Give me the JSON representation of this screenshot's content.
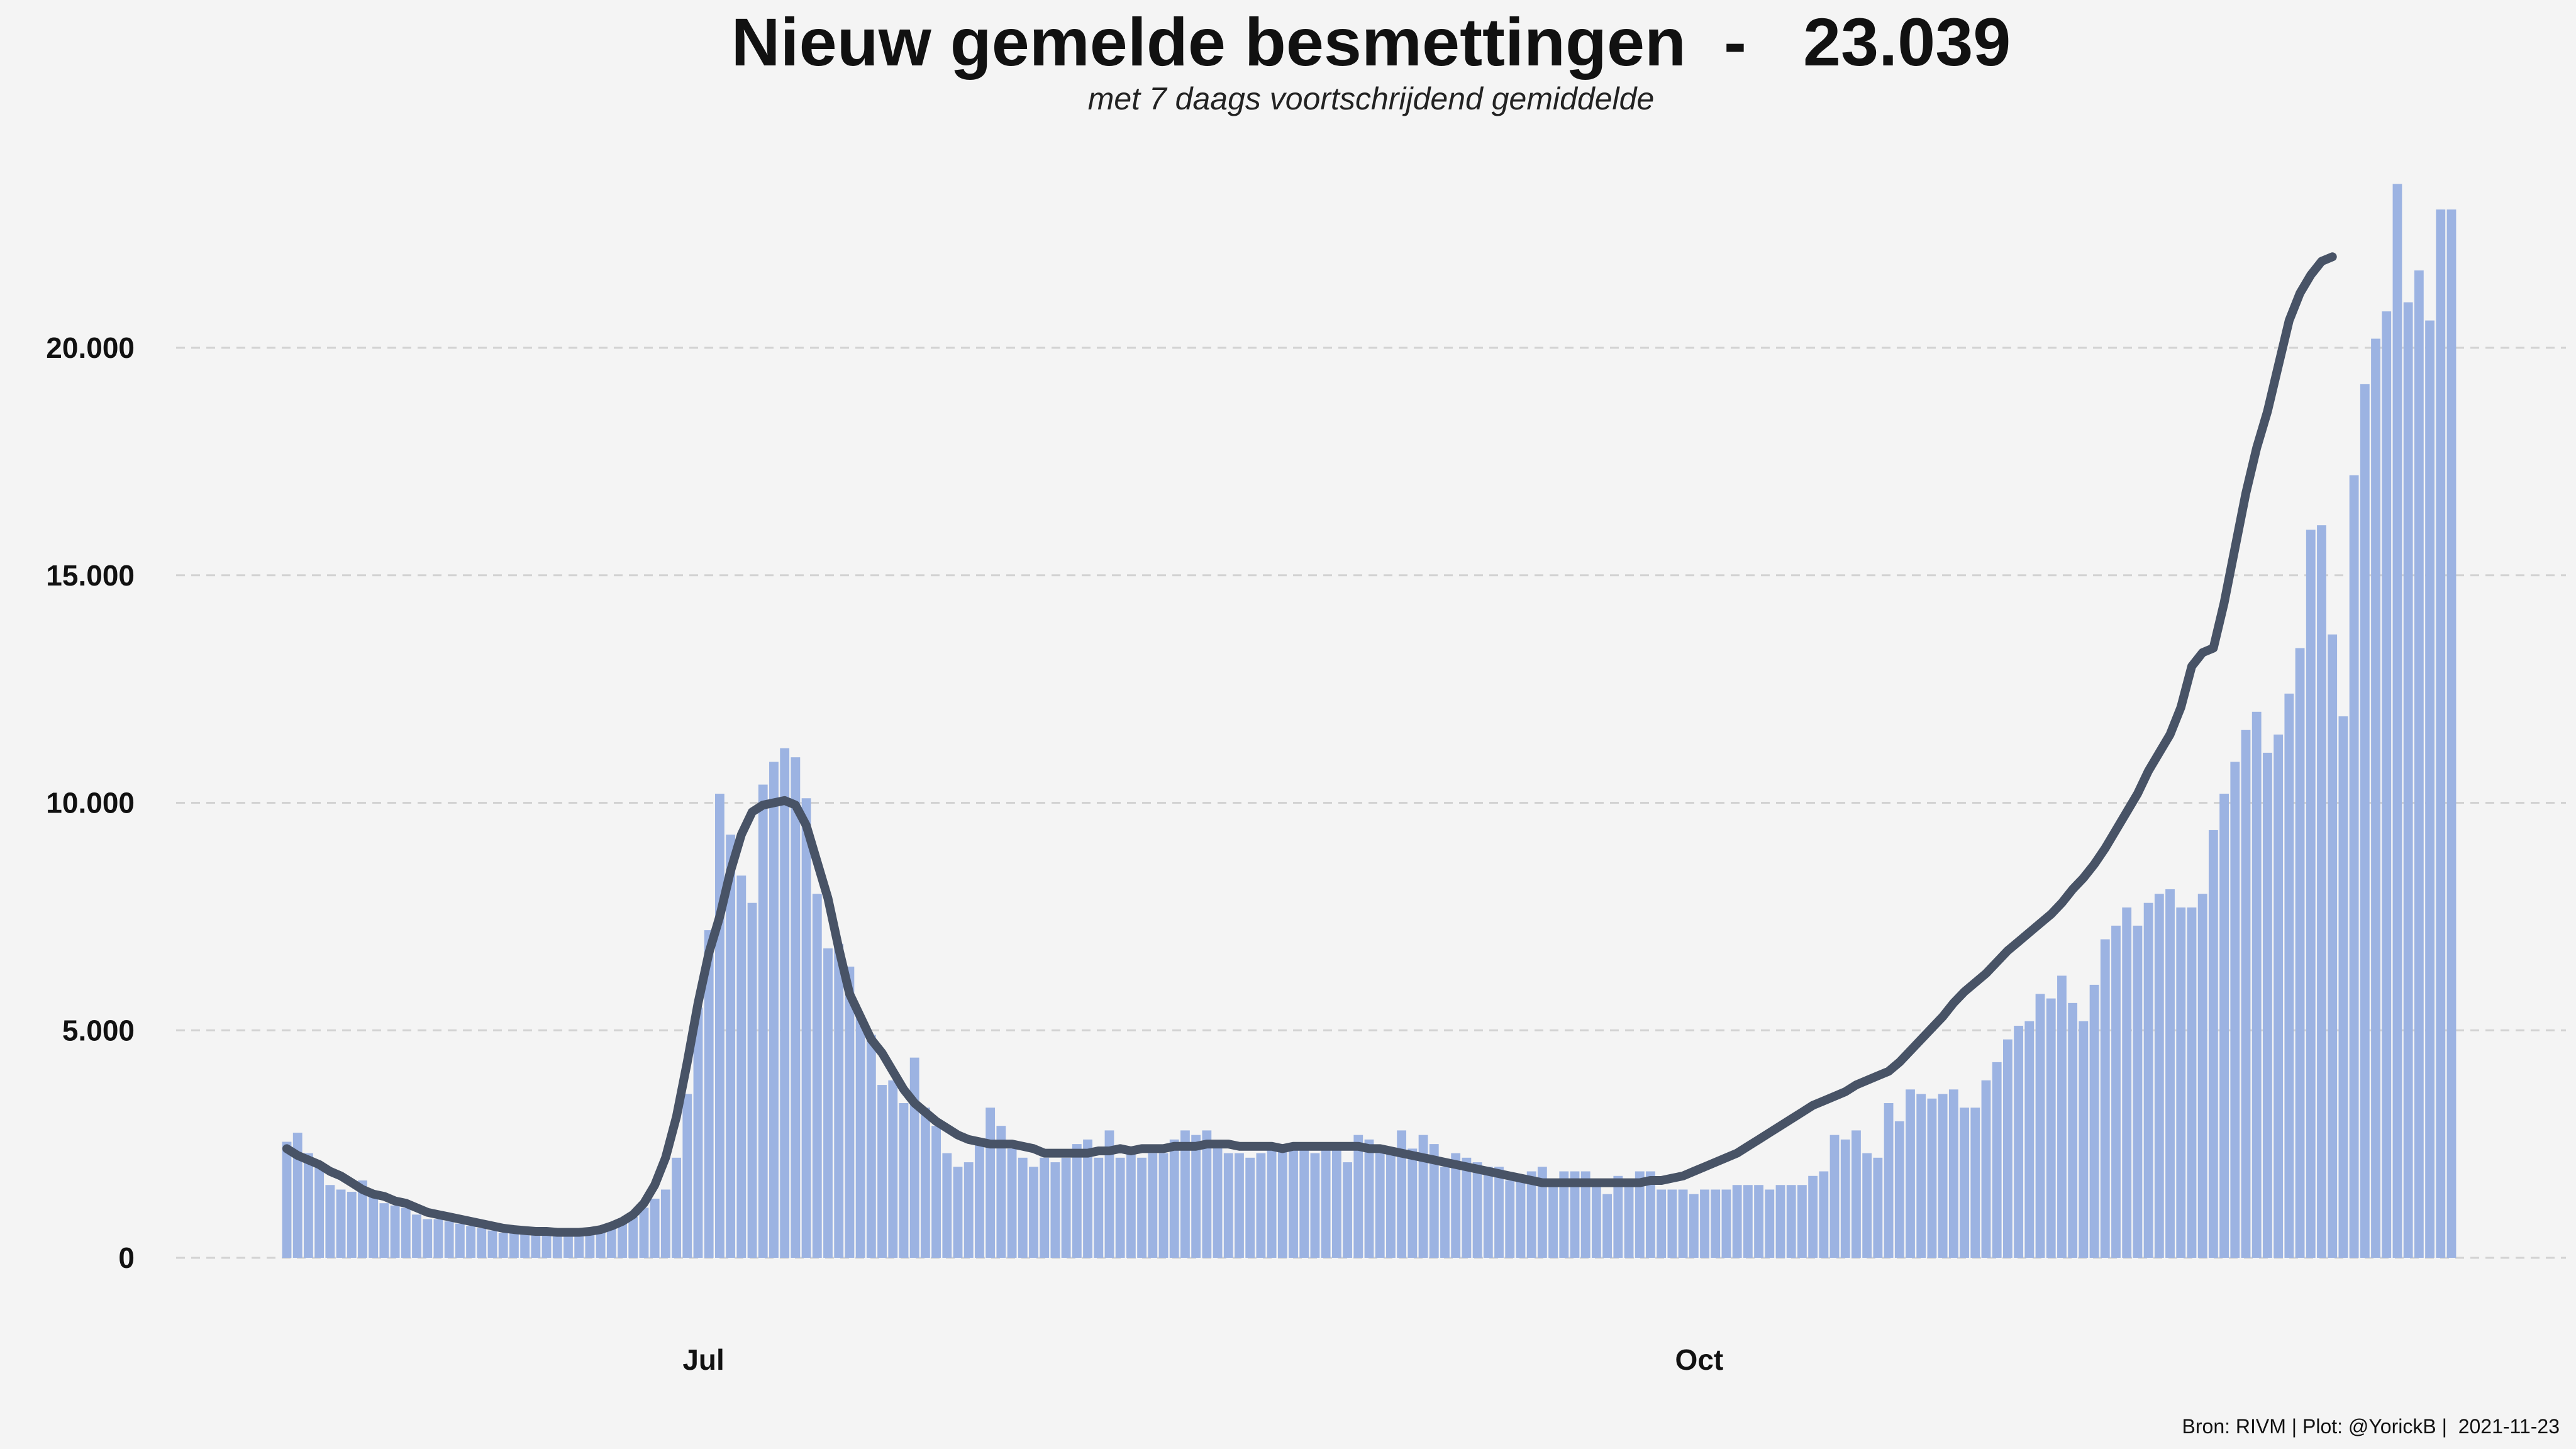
{
  "chart_data": {
    "type": "bar",
    "title": "Nieuw gemelde besmettingen  -   23.039",
    "subtitle": "met 7 daags voortschrijdend gemiddelde",
    "caption": "Bron: RIVM | Plot: @YorickB |  2021-11-23",
    "x_start_date": "2021-05-23",
    "x_end_date": "2021-11-22",
    "x_tick_labels": [
      {
        "label": "Jul",
        "date": "2021-07-01"
      },
      {
        "label": "Oct",
        "date": "2021-10-01"
      }
    ],
    "y_tick_labels": [
      "0",
      "5.000",
      "10.000",
      "15.000",
      "20.000"
    ],
    "y_ticks": [
      0,
      5000,
      10000,
      15000,
      20000
    ],
    "ylim": [
      0,
      24000
    ],
    "grid": "horizontal dashed",
    "series": [
      {
        "kind": "bar",
        "color": "#9cb3e2",
        "values": [
          2550,
          2750,
          2300,
          2100,
          1600,
          1500,
          1450,
          1700,
          1400,
          1200,
          1150,
          1100,
          950,
          850,
          850,
          800,
          750,
          700,
          650,
          600,
          550,
          550,
          550,
          500,
          500,
          500,
          500,
          500,
          550,
          600,
          700,
          800,
          900,
          1100,
          1300,
          1500,
          2200,
          3600,
          5500,
          7200,
          10200,
          9300,
          8400,
          7800,
          10400,
          10900,
          11200,
          11000,
          10100,
          8000,
          6800,
          6900,
          6400,
          5300,
          4900,
          3800,
          3900,
          3400,
          4400,
          3300,
          2900,
          2300,
          2000,
          2100,
          2500,
          3300,
          2900,
          2400,
          2200,
          2000,
          2200,
          2100,
          2200,
          2500,
          2600,
          2200,
          2800,
          2200,
          2300,
          2200,
          2300,
          2300,
          2600,
          2800,
          2700,
          2800,
          2500,
          2300,
          2300,
          2200,
          2300,
          2400,
          2400,
          2400,
          2400,
          2300,
          2400,
          2400,
          2100,
          2700,
          2600,
          2300,
          2400,
          2800,
          2400,
          2700,
          2500,
          2000,
          2300,
          2200,
          2100,
          2000,
          2000,
          1700,
          1800,
          1900,
          2000,
          1700,
          1900,
          1900,
          1900,
          1700,
          1400,
          1800,
          1600,
          1900,
          1900,
          1500,
          1500,
          1500,
          1400,
          1500,
          1500,
          1500,
          1600,
          1600,
          1600,
          1500,
          1600,
          1600,
          1600,
          1800,
          1900,
          2700,
          2600,
          2800,
          2300,
          2200,
          3400,
          3000,
          3700,
          3600,
          3500,
          3600,
          3700,
          3300,
          3300,
          3900,
          4300,
          4800,
          5100,
          5200,
          5800,
          5700,
          6200,
          5600,
          5200,
          6000,
          7000,
          7300,
          7700,
          7300,
          7800,
          8000,
          8100,
          7700,
          7700,
          8000,
          9400,
          10200,
          10900,
          11600,
          12000,
          11100,
          11500,
          12400,
          13400,
          16000,
          16100,
          13700,
          11900,
          17200,
          19200,
          20200,
          20800,
          23600,
          21000,
          21700,
          20600,
          23039,
          23039
        ]
      },
      {
        "kind": "line",
        "name": "7 daags voortschrijdend gemiddelde",
        "color": "#485366",
        "values": [
          2400,
          2250,
          2150,
          2050,
          1900,
          1800,
          1650,
          1500,
          1400,
          1350,
          1250,
          1200,
          1100,
          1000,
          950,
          900,
          850,
          800,
          750,
          700,
          650,
          620,
          600,
          580,
          580,
          560,
          560,
          560,
          580,
          620,
          700,
          800,
          950,
          1200,
          1600,
          2200,
          3100,
          4300,
          5600,
          6700,
          7500,
          8500,
          9300,
          9800,
          9950,
          10000,
          10050,
          9950,
          9500,
          8700,
          7900,
          6800,
          5800,
          5300,
          4800,
          4500,
          4100,
          3700,
          3400,
          3200,
          3000,
          2850,
          2700,
          2600,
          2550,
          2500,
          2500,
          2500,
          2450,
          2400,
          2300,
          2300,
          2300,
          2300,
          2300,
          2350,
          2350,
          2400,
          2350,
          2400,
          2400,
          2400,
          2450,
          2450,
          2450,
          2500,
          2500,
          2500,
          2450,
          2450,
          2450,
          2450,
          2400,
          2450,
          2450,
          2450,
          2450,
          2450,
          2450,
          2450,
          2400,
          2400,
          2350,
          2300,
          2250,
          2200,
          2150,
          2100,
          2050,
          2000,
          1950,
          1900,
          1850,
          1800,
          1750,
          1700,
          1650,
          1650,
          1650,
          1650,
          1650,
          1650,
          1650,
          1650,
          1650,
          1650,
          1700,
          1700,
          1750,
          1800,
          1900,
          2000,
          2100,
          2200,
          2300,
          2450,
          2600,
          2750,
          2900,
          3050,
          3200,
          3350,
          3450,
          3550,
          3650,
          3800,
          3900,
          4000,
          4100,
          4300,
          4550,
          4800,
          5050,
          5300,
          5600,
          5850,
          6050,
          6250,
          6500,
          6750,
          6950,
          7150,
          7350,
          7550,
          7800,
          8100,
          8350,
          8650,
          9000,
          9400,
          9800,
          10200,
          10700,
          11100,
          11500,
          12100,
          13000,
          13300,
          13400,
          14400,
          15600,
          16800,
          17800,
          18600,
          19600,
          20600,
          21200,
          21600,
          21900,
          22000
        ]
      }
    ]
  }
}
